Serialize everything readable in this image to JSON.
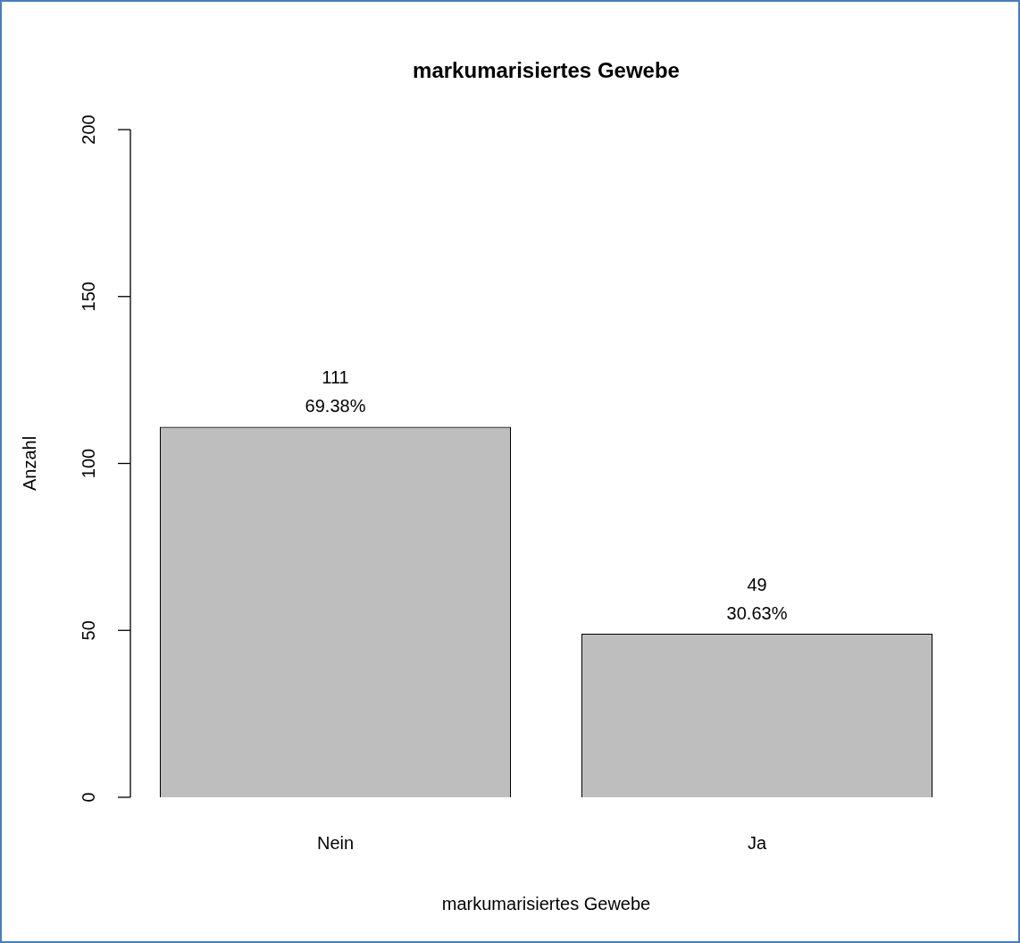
{
  "chart_data": {
    "type": "bar",
    "title": "markumarisiertes Gewebe",
    "xlabel": "markumarisiertes Gewebe",
    "ylabel": "Anzahl",
    "categories": [
      "Nein",
      "Ja"
    ],
    "values": [
      111,
      49
    ],
    "color": "#bebebe",
    "value_labels": [
      "111\n69.38%",
      "49\n30.63%"
    ],
    "ylim": [
      0,
      200
    ],
    "yticks": [
      0,
      50,
      100,
      150,
      200
    ]
  }
}
